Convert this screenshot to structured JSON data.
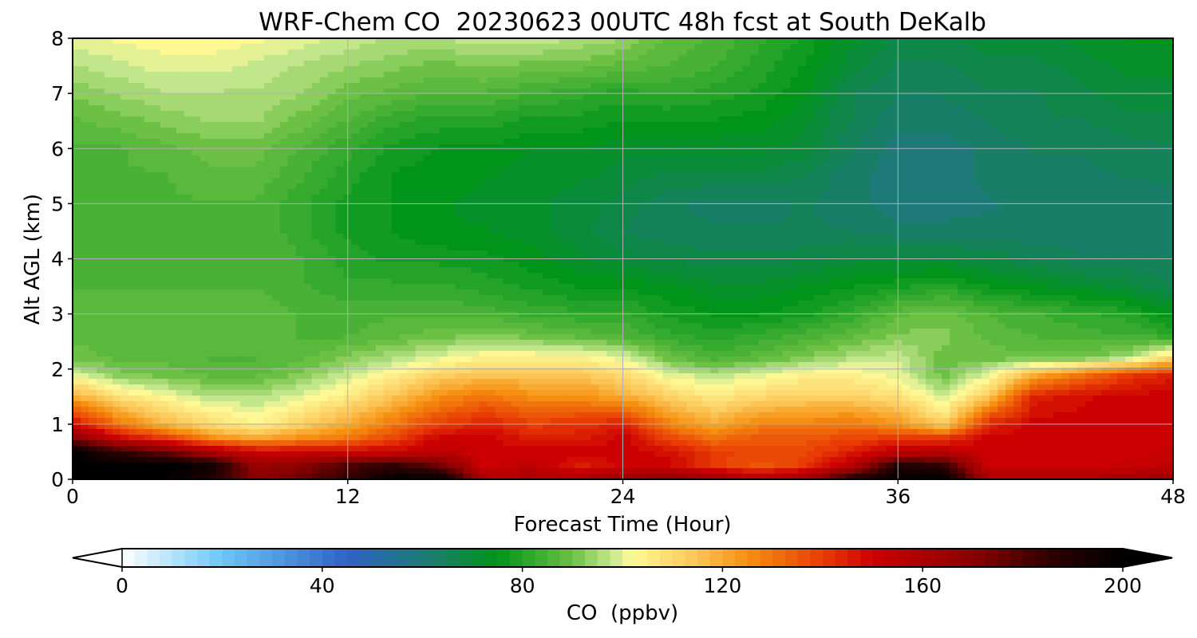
{
  "chart_data": {
    "type": "heatmap",
    "title": "WRF-Chem CO  20230623 00UTC 48h fcst at South DeKalb",
    "xlabel": "Forecast Time (Hour)",
    "ylabel": "Alt AGL (km)",
    "xlim": [
      0,
      48
    ],
    "ylim": [
      0,
      8
    ],
    "xticks": [
      "0",
      "12",
      "24",
      "36",
      "48"
    ],
    "yticks": [
      "0",
      "1",
      "2",
      "3",
      "4",
      "5",
      "6",
      "7",
      "8"
    ],
    "grid": true,
    "colorbar": {
      "label": "CO  (ppbv)",
      "range": [
        0,
        200
      ],
      "ticks": [
        "0",
        "40",
        "80",
        "120",
        "160",
        "200"
      ],
      "extend": "both",
      "stops": [
        {
          "value": 0,
          "color": "#ffffff"
        },
        {
          "value": 20,
          "color": "#6cc6f6"
        },
        {
          "value": 45,
          "color": "#2f62c4"
        },
        {
          "value": 60,
          "color": "#1e7a78"
        },
        {
          "value": 75,
          "color": "#00941a"
        },
        {
          "value": 90,
          "color": "#6cc044"
        },
        {
          "value": 98,
          "color": "#c8e890"
        },
        {
          "value": 102,
          "color": "#fffa98"
        },
        {
          "value": 115,
          "color": "#fcc455"
        },
        {
          "value": 125,
          "color": "#f69010"
        },
        {
          "value": 140,
          "color": "#e83c04"
        },
        {
          "value": 150,
          "color": "#cc0000"
        },
        {
          "value": 170,
          "color": "#8a0000"
        },
        {
          "value": 185,
          "color": "#300000"
        },
        {
          "value": 200,
          "color": "#000000"
        }
      ]
    },
    "colors": {
      "above_max": "#000000",
      "below_min": "#ffffff"
    },
    "hours": [
      0,
      2,
      4,
      6,
      8,
      10,
      12,
      14,
      16,
      18,
      20,
      22,
      24,
      26,
      28,
      30,
      32,
      34,
      36,
      38,
      40,
      42,
      44,
      46,
      48
    ],
    "alt_km": [
      0.0,
      0.25,
      0.5,
      0.75,
      1.0,
      1.5,
      1.9,
      2.2,
      2.6,
      3.0,
      3.5,
      4.0,
      4.5,
      5.0,
      5.5,
      6.0,
      6.5,
      7.0,
      7.5,
      8.0
    ],
    "co_ppbv": [
      [
        200,
        200,
        200,
        190,
        170,
        175,
        185,
        200,
        200,
        160,
        160,
        160,
        165,
        170,
        165,
        158,
        165,
        190,
        200,
        200,
        160,
        160,
        160,
        162,
        165
      ],
      [
        200,
        200,
        200,
        195,
        165,
        170,
        180,
        185,
        175,
        150,
        155,
        145,
        150,
        150,
        140,
        135,
        140,
        155,
        190,
        185,
        150,
        150,
        150,
        152,
        155
      ],
      [
        200,
        185,
        175,
        160,
        150,
        150,
        150,
        150,
        155,
        150,
        150,
        150,
        150,
        148,
        140,
        138,
        138,
        145,
        155,
        155,
        150,
        150,
        150,
        150,
        152
      ],
      [
        170,
        150,
        140,
        125,
        120,
        125,
        130,
        138,
        150,
        150,
        145,
        145,
        150,
        138,
        130,
        135,
        135,
        138,
        140,
        140,
        150,
        150,
        150,
        150,
        150
      ],
      [
        150,
        130,
        118,
        110,
        104,
        112,
        120,
        130,
        140,
        145,
        140,
        142,
        145,
        128,
        120,
        128,
        128,
        130,
        125,
        112,
        145,
        150,
        150,
        150,
        150
      ],
      [
        120,
        108,
        102,
        96,
        96,
        100,
        106,
        115,
        125,
        130,
        125,
        125,
        120,
        112,
        106,
        110,
        112,
        112,
        108,
        98,
        115,
        145,
        148,
        150,
        150
      ],
      [
        100,
        92,
        90,
        88,
        88,
        92,
        98,
        104,
        112,
        115,
        115,
        115,
        110,
        100,
        96,
        100,
        104,
        104,
        100,
        90,
        100,
        120,
        130,
        140,
        145
      ],
      [
        90,
        88,
        88,
        86,
        86,
        88,
        92,
        96,
        100,
        104,
        104,
        104,
        100,
        90,
        85,
        88,
        92,
        96,
        98,
        90,
        90,
        90,
        90,
        95,
        110
      ],
      [
        88,
        88,
        88,
        88,
        88,
        86,
        86,
        88,
        90,
        92,
        90,
        88,
        86,
        82,
        80,
        82,
        85,
        88,
        92,
        92,
        88,
        86,
        85,
        84,
        82
      ],
      [
        88,
        88,
        88,
        88,
        88,
        86,
        85,
        86,
        86,
        85,
        83,
        82,
        82,
        78,
        76,
        76,
        78,
        82,
        88,
        90,
        86,
        84,
        82,
        80,
        74
      ],
      [
        86,
        86,
        86,
        86,
        86,
        84,
        82,
        82,
        82,
        80,
        78,
        76,
        76,
        74,
        72,
        72,
        74,
        76,
        78,
        80,
        76,
        74,
        72,
        70,
        66
      ],
      [
        86,
        86,
        86,
        86,
        86,
        84,
        80,
        78,
        78,
        77,
        75,
        72,
        70,
        68,
        67,
        67,
        68,
        70,
        70,
        70,
        68,
        66,
        64,
        64,
        64
      ],
      [
        86,
        86,
        86,
        86,
        86,
        82,
        78,
        76,
        74,
        74,
        72,
        70,
        66,
        65,
        64,
        64,
        64,
        64,
        62,
        62,
        62,
        62,
        62,
        62,
        62
      ],
      [
        86,
        86,
        86,
        86,
        86,
        82,
        78,
        76,
        74,
        73,
        72,
        70,
        68,
        64,
        63,
        63,
        64,
        62,
        60,
        60,
        61,
        62,
        62,
        62,
        63
      ],
      [
        86,
        86,
        86,
        88,
        88,
        84,
        80,
        76,
        75,
        74,
        72,
        72,
        70,
        68,
        68,
        68,
        66,
        62,
        60,
        60,
        62,
        63,
        63,
        64,
        64
      ],
      [
        86,
        86,
        88,
        90,
        90,
        86,
        82,
        78,
        76,
        76,
        74,
        74,
        72,
        72,
        72,
        72,
        70,
        64,
        60,
        60,
        62,
        64,
        64,
        65,
        66
      ],
      [
        88,
        90,
        92,
        94,
        94,
        90,
        86,
        82,
        80,
        80,
        78,
        78,
        76,
        76,
        76,
        75,
        72,
        66,
        62,
        62,
        64,
        66,
        66,
        68,
        68
      ],
      [
        92,
        94,
        96,
        96,
        96,
        94,
        90,
        88,
        86,
        86,
        84,
        82,
        80,
        82,
        80,
        78,
        74,
        66,
        64,
        64,
        66,
        66,
        68,
        70,
        70
      ],
      [
        96,
        98,
        100,
        100,
        98,
        96,
        94,
        92,
        90,
        92,
        90,
        90,
        88,
        86,
        84,
        80,
        76,
        70,
        66,
        66,
        68,
        68,
        70,
        72,
        72
      ],
      [
        100,
        102,
        103,
        103,
        102,
        100,
        98,
        96,
        96,
        98,
        98,
        96,
        94,
        88,
        86,
        82,
        78,
        72,
        68,
        68,
        70,
        70,
        72,
        74,
        74
      ]
    ]
  }
}
